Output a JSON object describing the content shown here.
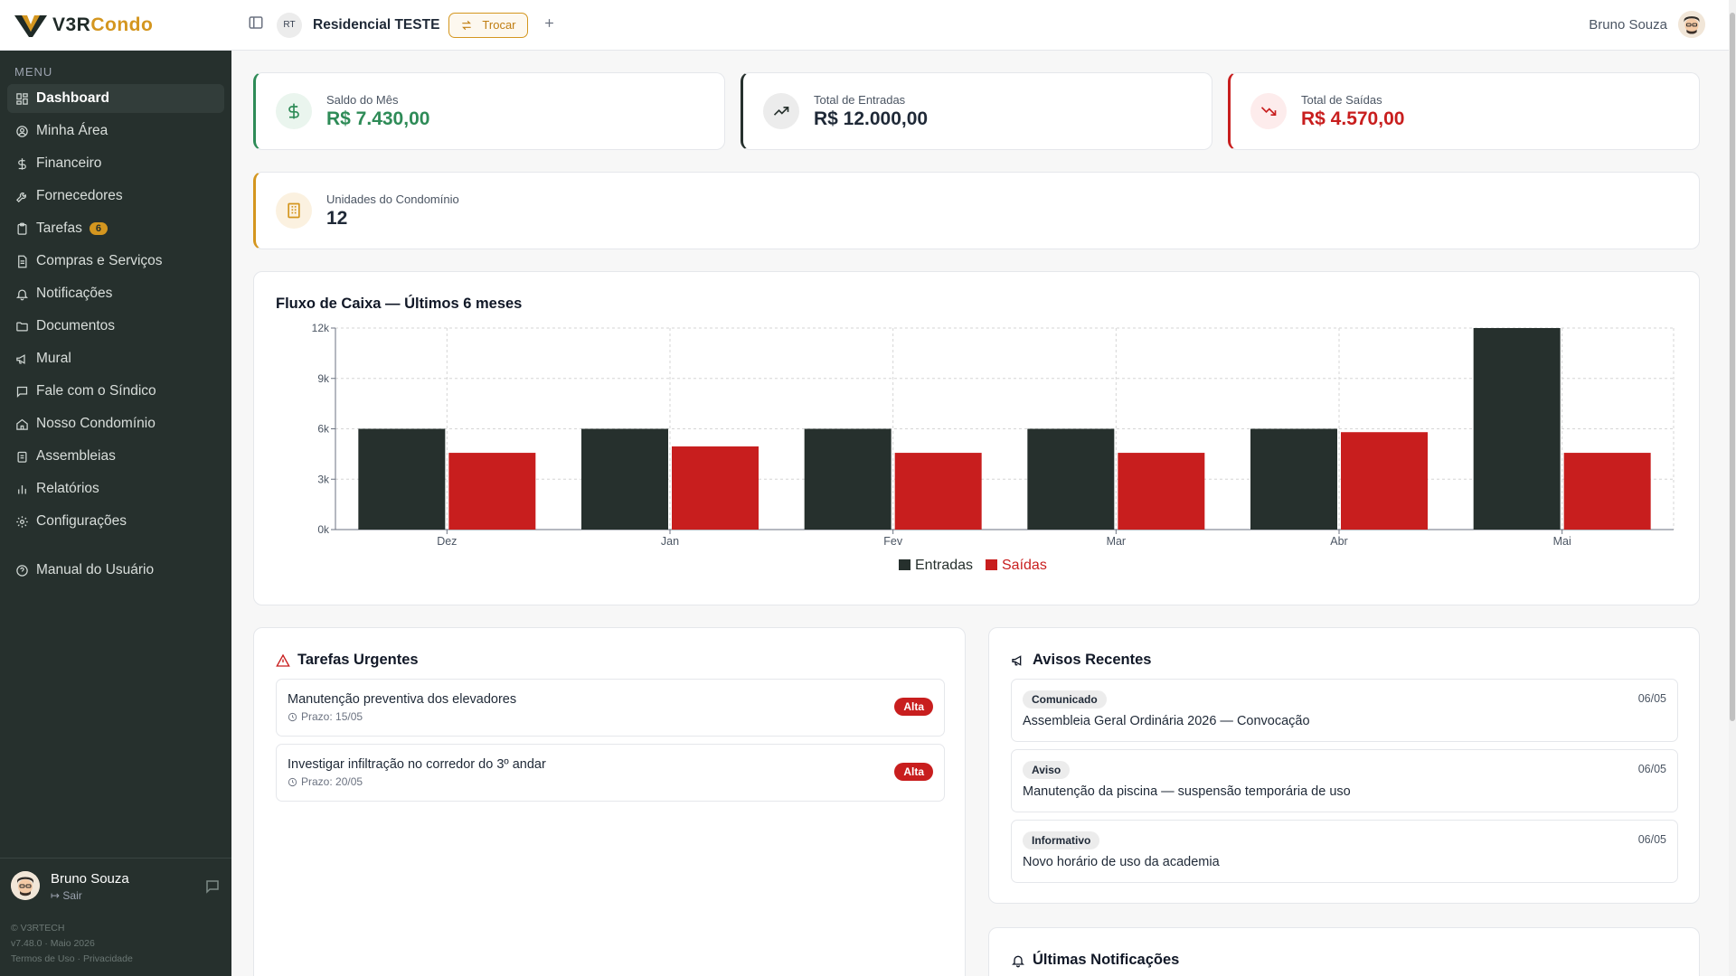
{
  "app": {
    "logo_v3r": "V3R",
    "logo_condo": "Condo"
  },
  "sidebar": {
    "menu_caption": "MENU",
    "items": [
      {
        "label": "Dashboard",
        "icon": "grid-icon",
        "active": true
      },
      {
        "label": "Minha Área",
        "icon": "user-circle-icon"
      },
      {
        "label": "Financeiro",
        "icon": "dollar-icon"
      },
      {
        "label": "Fornecedores",
        "icon": "wrench-icon"
      },
      {
        "label": "Tarefas",
        "icon": "clipboard-icon",
        "badge": "6"
      },
      {
        "label": "Compras e Serviços",
        "icon": "receipt-icon"
      },
      {
        "label": "Notificações",
        "icon": "bell-icon"
      },
      {
        "label": "Documentos",
        "icon": "folder-icon"
      },
      {
        "label": "Mural",
        "icon": "megaphone-icon"
      },
      {
        "label": "Fale com o Síndico",
        "icon": "message-icon"
      },
      {
        "label": "Nosso Condomínio",
        "icon": "home-icon"
      },
      {
        "label": "Assembleias",
        "icon": "clipboard-list-icon"
      },
      {
        "label": "Relatórios",
        "icon": "bar-chart-icon"
      },
      {
        "label": "Configurações",
        "icon": "gear-icon"
      }
    ],
    "manual": {
      "label": "Manual do Usuário",
      "icon": "help-circle-icon"
    },
    "user": {
      "name": "Bruno Souza",
      "logout": "Sair"
    },
    "footer": {
      "copyright": "© V3RTECH",
      "version": "v7.48.0 · Maio 2026",
      "terms": "Termos de Uso",
      "sep": "·",
      "privacy": "Privacidade"
    }
  },
  "header": {
    "condo_initials": "RT",
    "condo_name": "Residencial TESTE",
    "switch_label": "Trocar",
    "user_name": "Bruno Souza"
  },
  "stats": {
    "saldo": {
      "label": "Saldo do Mês",
      "value": "R$ 7.430,00",
      "color": "#2e8b57"
    },
    "entradas": {
      "label": "Total de Entradas",
      "value": "R$ 12.000,00",
      "color": "#26302d"
    },
    "saidas": {
      "label": "Total de Saídas",
      "value": "R$ 4.570,00",
      "color": "#c81e1e"
    },
    "unidades": {
      "label": "Unidades do Condomínio",
      "value": "12",
      "color": "#d4961f"
    }
  },
  "chart_data": {
    "type": "bar",
    "title": "Fluxo de Caixa — Últimos 6 meses",
    "categories": [
      "Dez",
      "Jan",
      "Fev",
      "Mar",
      "Abr",
      "Mai"
    ],
    "series": [
      {
        "name": "Entradas",
        "color": "#26302d",
        "values": [
          6000,
          6000,
          6000,
          6000,
          6000,
          12000
        ]
      },
      {
        "name": "Saídas",
        "color": "#c81e1e",
        "values": [
          4570,
          4950,
          4570,
          4570,
          5800,
          4570
        ]
      }
    ],
    "yticks": [
      "0k",
      "3k",
      "6k",
      "9k",
      "12k"
    ],
    "ylim": [
      0,
      12000
    ],
    "grid": true,
    "legend": "bottom-center"
  },
  "tasks": {
    "title": "Tarefas Urgentes",
    "items": [
      {
        "title": "Manutenção preventiva dos elevadores",
        "due": "Prazo: 15/05",
        "priority": "Alta"
      },
      {
        "title": "Investigar infiltração no corredor do 3º andar",
        "due": "Prazo: 20/05",
        "priority": "Alta"
      }
    ]
  },
  "avisos": {
    "title": "Avisos Recentes",
    "items": [
      {
        "tag": "Comunicado",
        "date": "06/05",
        "title": "Assembleia Geral Ordinária 2026 — Convocação"
      },
      {
        "tag": "Aviso",
        "date": "06/05",
        "title": "Manutenção da piscina — suspensão temporária de uso"
      },
      {
        "tag": "Informativo",
        "date": "06/05",
        "title": "Novo horário de uso da academia"
      }
    ]
  },
  "notifications": {
    "title": "Últimas Notificações"
  }
}
